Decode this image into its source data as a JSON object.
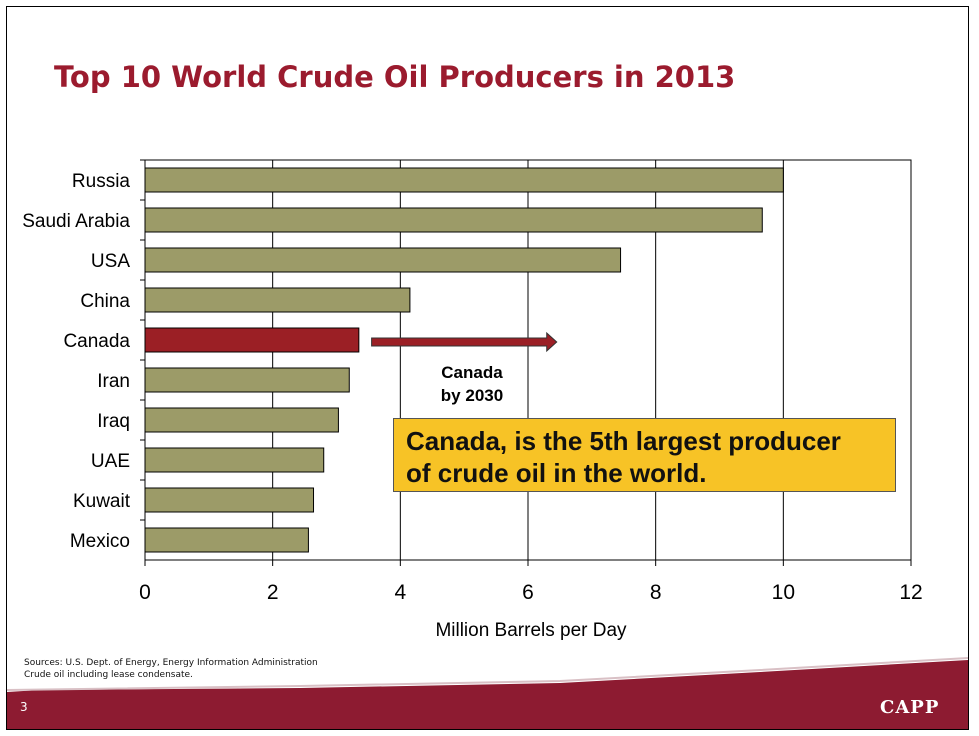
{
  "slide": {
    "title": "Top 10 World Crude Oil Producers in 2013",
    "page_number": "3",
    "logo_text": "CAPP",
    "sources": [
      "Sources: U.S. Dept. of Energy, Energy Information Administration",
      "Crude oil including lease condensate."
    ],
    "callout": {
      "lines": [
        "Canada, is the 5th largest producer",
        "of crude oil in the world."
      ]
    },
    "arrow_label": [
      "Canada",
      "by 2030"
    ],
    "colors": {
      "title": "#9b1b2e",
      "bar_default": "#9c9b68",
      "bar_highlight": "#9b1f25",
      "callout_bg": "#f7c326",
      "footer_band": "#8d1b31"
    }
  },
  "chart_data": {
    "type": "bar",
    "orientation": "horizontal",
    "categories": [
      "Russia",
      "Saudi Arabia",
      "USA",
      "China",
      "Canada",
      "Iran",
      "Iraq",
      "UAE",
      "Kuwait",
      "Mexico"
    ],
    "values": [
      10.0,
      9.67,
      7.45,
      4.15,
      3.35,
      3.2,
      3.03,
      2.8,
      2.64,
      2.56
    ],
    "highlight": "Canada",
    "xlabel": "Million Barrels per Day",
    "xlim": [
      0,
      12
    ],
    "xticks": [
      "0",
      "2",
      "4",
      "6",
      "8",
      "10",
      "12"
    ],
    "grid": true,
    "canada_2030_value": 6.45
  }
}
